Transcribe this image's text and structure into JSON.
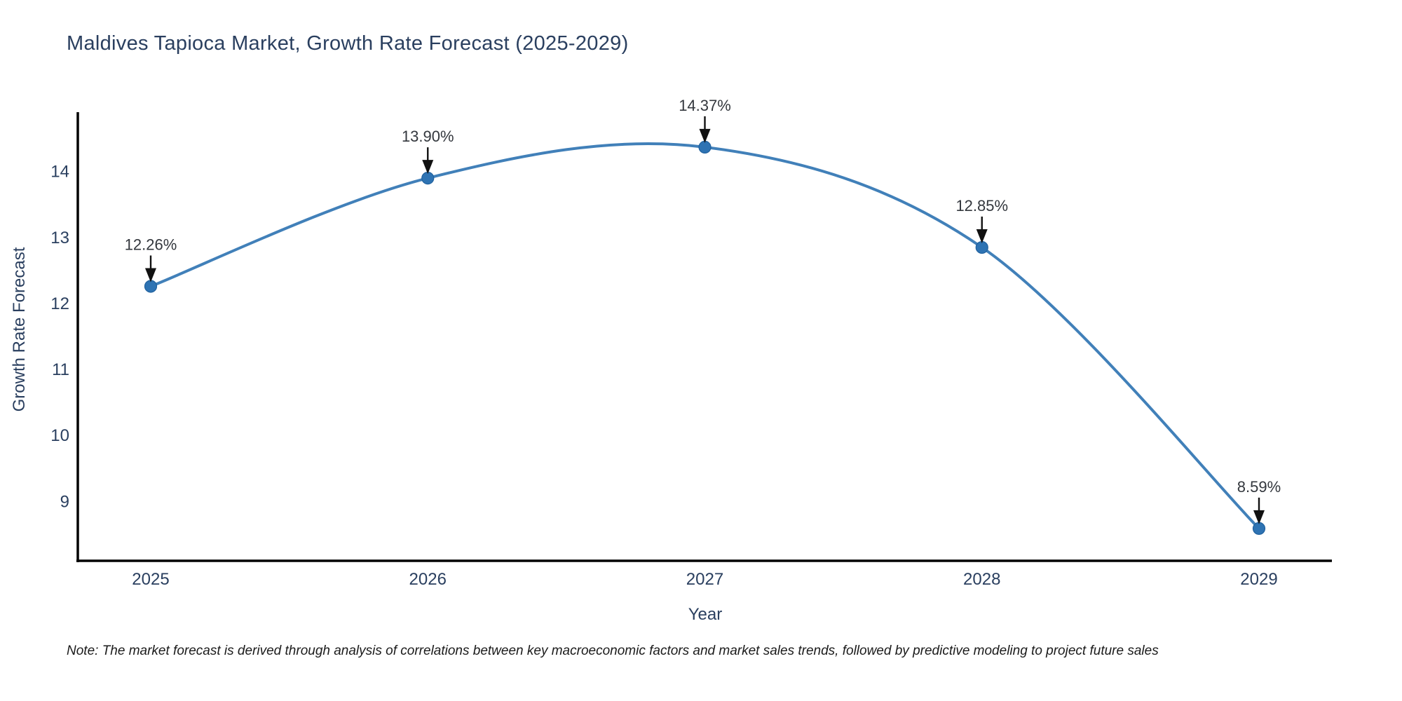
{
  "footer": {
    "note": "Note: The market forecast is derived through analysis of correlations between key macroeconomic factors and market sales trends, followed by predictive modeling to project future sales"
  },
  "chart_data": {
    "type": "line",
    "title": "Maldives Tapioca Market, Growth Rate Forecast (2025-2029)",
    "xlabel": "Year",
    "ylabel": "Growth Rate Forecast",
    "categories": [
      "2025",
      "2026",
      "2027",
      "2028",
      "2029"
    ],
    "values": [
      12.26,
      13.9,
      14.37,
      12.85,
      8.59
    ],
    "point_labels": [
      "12.26%",
      "13.90%",
      "14.37%",
      "12.85%",
      "8.59%"
    ],
    "yticks": [
      9,
      10,
      11,
      12,
      13,
      14
    ],
    "ylim": [
      8.1,
      14.9
    ],
    "grid": false,
    "legend_position": "none",
    "line_style": "spline",
    "colors": {
      "line": "#4180b9",
      "marker": "#2e73b3",
      "marker_edge": "#20619e",
      "axis": "#000000",
      "tick_label": "#2a3f5f",
      "annotation_text": "#33373d",
      "arrow": "#111111"
    }
  }
}
